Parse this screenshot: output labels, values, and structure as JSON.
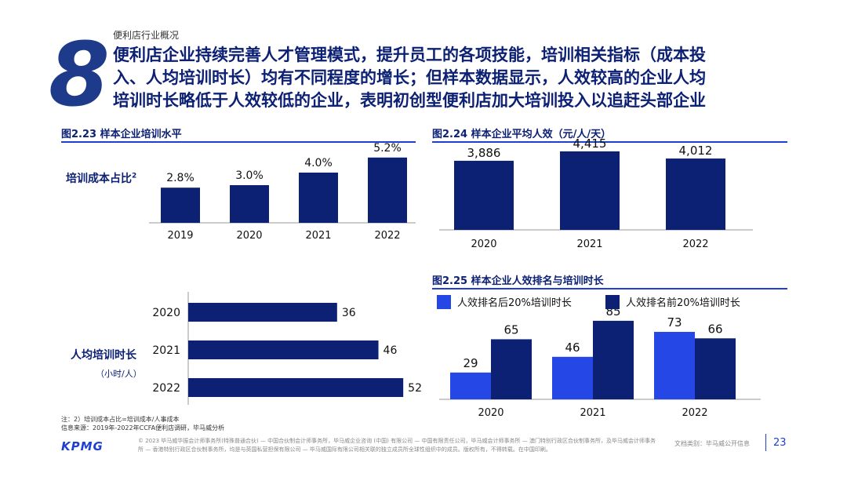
{
  "header": {
    "section": "便利店行业概况",
    "number": "8",
    "title_lines": [
      "便利店企业持续完善人才管理模式，提升员工的各项技能，培训相关指标（成本投",
      "入、人均培训时长）均有不同程度的增长；但样本数据显示，人效较高的企业人均",
      "培训时长略低于人效较低的企业，表明初创型便利店加大培训投入以追赶头部企业"
    ]
  },
  "chart_labels": {
    "fig223_row_label": "培训成本占比",
    "fig223_row_label_sup": "2",
    "fig_hours_row_label": "人均培训时长",
    "fig_hours_unit": "（小时/人）"
  },
  "chart_data": [
    {
      "id": "fig-2-23",
      "type": "bar",
      "title": "图2.23 样本企业培训水平",
      "categories": [
        "2019",
        "2020",
        "2021",
        "2022"
      ],
      "values": [
        2.8,
        3.0,
        4.0,
        5.2
      ],
      "labels": [
        "2.8%",
        "3.0%",
        "4.0%",
        "5.2%"
      ],
      "ylabel": "培训成本占比",
      "ylim": [
        0,
        6
      ]
    },
    {
      "id": "fig-2-23-hours",
      "type": "bar",
      "orientation": "horizontal",
      "categories": [
        "2020",
        "2021",
        "2022"
      ],
      "values": [
        36,
        46,
        52
      ],
      "ylabel": "人均培训时长（小时/人）",
      "xlim": [
        0,
        55
      ]
    },
    {
      "id": "fig-2-24",
      "type": "bar",
      "title": "图2.24 样本企业平均人效（元/人/天）",
      "categories": [
        "2020",
        "2021",
        "2022"
      ],
      "values": [
        3886,
        4415,
        4012
      ],
      "labels": [
        "3,886",
        "4,415",
        "4,012"
      ],
      "ylim": [
        0,
        4500
      ]
    },
    {
      "id": "fig-2-25",
      "type": "bar",
      "title": "图2.25 样本企业人效排名与培训时长",
      "categories": [
        "2020",
        "2021",
        "2022"
      ],
      "series": [
        {
          "name": "人效排名后20%培训时长",
          "values": [
            29,
            46,
            73
          ],
          "color": "#2447e6"
        },
        {
          "name": "人效排名前20%培训时长",
          "values": [
            65,
            85,
            66
          ],
          "color": "#0c2074"
        }
      ],
      "ylim": [
        0,
        90
      ]
    }
  ],
  "footer": {
    "note": "注：2）培训成本占比=培训成本/人事成本",
    "source": "信息来源：2019年-2022年CCFA便利店调研，毕马威分析",
    "logo": "KPMG",
    "copyright": "© 2023 毕马威华振会计师事务所(特殊普通合伙) — 中国合伙制会计师事务所，毕马威企业咨询 (中国) 有限公司 — 中国有限责任公司，毕马威会计师事务所 — 澳门特别行政区合伙制事务所，及毕马威会计师事务所 — 香港特别行政区合伙制事务所，均是与英国私营担保有限公司 — 毕马威国际有限公司相关联的独立成员所全球性组织中的成员。版权所有，不得转载。在中国印刷。",
    "doc_class": "文档类别：毕马威公开信息",
    "page": "23"
  },
  "colors": {
    "dark_bar": "#0c2074",
    "light_bar": "#2447e6",
    "accent": "#1e3fd0"
  }
}
